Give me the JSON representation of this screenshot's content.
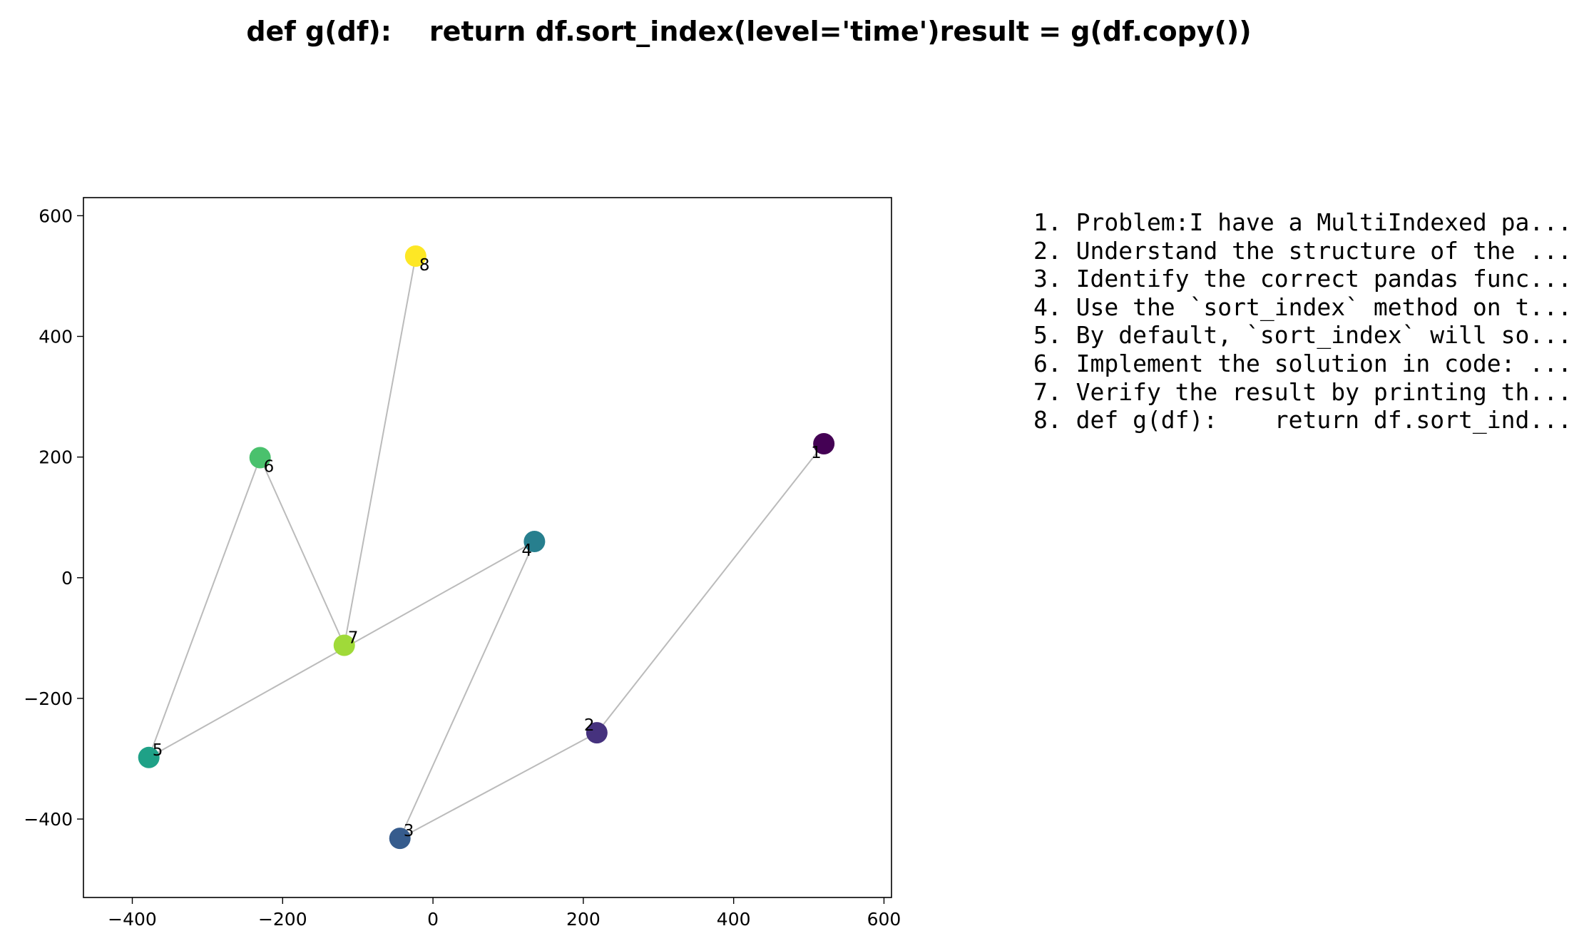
{
  "chart_data": {
    "type": "scatter",
    "title": "def g(df):    return df.sort_index(level='time')result = g(df.copy())",
    "xlabel": "",
    "ylabel": "",
    "xlim": [
      -465,
      610
    ],
    "ylim": [
      -530,
      630
    ],
    "grid": false,
    "connect_points": true,
    "line_color": "#bbbbbb",
    "colormap": "viridis",
    "x_ticks": [
      -400,
      -200,
      0,
      200,
      400,
      600
    ],
    "x_tick_labels": [
      "−400",
      "−200",
      "0",
      "200",
      "400",
      "600"
    ],
    "y_ticks": [
      -400,
      -200,
      0,
      200,
      400,
      600
    ],
    "y_tick_labels": [
      "−400",
      "−200",
      "0",
      "200",
      "400",
      "600"
    ],
    "points": [
      {
        "label": "1",
        "x": 520,
        "y": 222,
        "color": "#440154",
        "label_pos": "lower-left"
      },
      {
        "label": "2",
        "x": 218,
        "y": -257,
        "color": "#46327e",
        "label_pos": "upper-left"
      },
      {
        "label": "3",
        "x": -44,
        "y": -432,
        "color": "#365c8d",
        "label_pos": "upper-right"
      },
      {
        "label": "4",
        "x": 135,
        "y": 60,
        "color": "#277f8e",
        "label_pos": "lower-left"
      },
      {
        "label": "5",
        "x": -378,
        "y": -298,
        "color": "#1fa187",
        "label_pos": "upper-right"
      },
      {
        "label": "6",
        "x": -230,
        "y": 199,
        "color": "#4ac16d",
        "label_pos": "lower-right"
      },
      {
        "label": "7",
        "x": -118,
        "y": -112,
        "color": "#a0da39",
        "label_pos": "upper-right"
      },
      {
        "label": "8",
        "x": -23,
        "y": 533,
        "color": "#fde725",
        "label_pos": "lower-right"
      }
    ]
  },
  "steps": [
    "1. Problem:I have a MultiIndexed pa...",
    "2. Understand the structure of the ...",
    "3. Identify the correct pandas func...",
    "4. Use the `sort_index` method on t...",
    "5. By default, `sort_index` will so...",
    "6. Implement the solution in code: ...",
    "7. Verify the result by printing th...",
    "8. def g(df):    return df.sort_ind..."
  ]
}
